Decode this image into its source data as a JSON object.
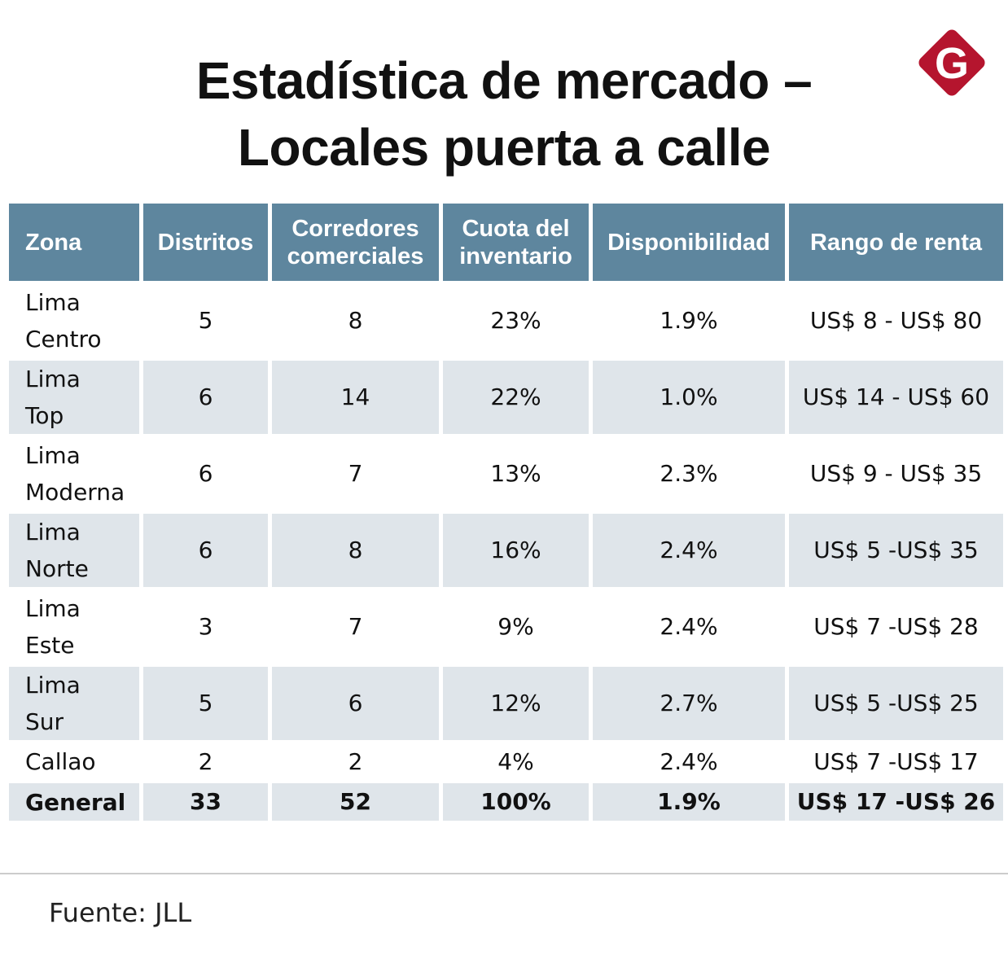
{
  "header": {
    "title_line1": "Estadística de mercado –",
    "title_line2": "Locales puerta a calle",
    "logo_letter": "G",
    "logo_color": "#b5152e"
  },
  "chart_data": {
    "type": "table",
    "columns": [
      "Zona",
      "Distritos",
      "Corredores comerciales",
      "Cuota del inventario",
      "Disponibilidad",
      "Rango de renta"
    ],
    "header_lines": [
      [
        "Zona"
      ],
      [
        "Distritos"
      ],
      [
        "Corredores",
        "comerciales"
      ],
      [
        "Cuota del",
        "inventario"
      ],
      [
        "Disponibilidad"
      ],
      [
        "Rango de renta"
      ]
    ],
    "rows": [
      {
        "zona": [
          "Lima",
          "Centro"
        ],
        "distritos": "5",
        "corredores": "8",
        "cuota": "23%",
        "disponibilidad": "1.9%",
        "renta": "US$ 8 - US$ 80"
      },
      {
        "zona": [
          "Lima",
          "Top"
        ],
        "distritos": "6",
        "corredores": "14",
        "cuota": "22%",
        "disponibilidad": "1.0%",
        "renta": "US$ 14 - US$ 60"
      },
      {
        "zona": [
          "Lima",
          "Moderna"
        ],
        "distritos": "6",
        "corredores": "7",
        "cuota": "13%",
        "disponibilidad": "2.3%",
        "renta": "US$ 9 - US$ 35"
      },
      {
        "zona": [
          "Lima",
          "Norte"
        ],
        "distritos": "6",
        "corredores": "8",
        "cuota": "16%",
        "disponibilidad": "2.4%",
        "renta": "US$ 5 -US$ 35"
      },
      {
        "zona": [
          "Lima",
          "Este"
        ],
        "distritos": "3",
        "corredores": "7",
        "cuota": "9%",
        "disponibilidad": "2.4%",
        "renta": "US$ 7 -US$ 28"
      },
      {
        "zona": [
          "Lima",
          "Sur"
        ],
        "distritos": "5",
        "corredores": "6",
        "cuota": "12%",
        "disponibilidad": "2.7%",
        "renta": "US$ 5 -US$ 25"
      },
      {
        "zona": [
          "Callao"
        ],
        "distritos": "2",
        "corredores": "2",
        "cuota": "4%",
        "disponibilidad": "2.4%",
        "renta": "US$ 7 -US$ 17"
      }
    ],
    "total": {
      "zona": [
        "General"
      ],
      "distritos": "33",
      "corredores": "52",
      "cuota": "100%",
      "disponibilidad": "1.9%",
      "renta": "US$ 17 -US$ 26"
    },
    "header_color": "#5e869e",
    "shade_color": "#dfe5ea"
  },
  "footer": {
    "source": "Fuente: JLL"
  }
}
